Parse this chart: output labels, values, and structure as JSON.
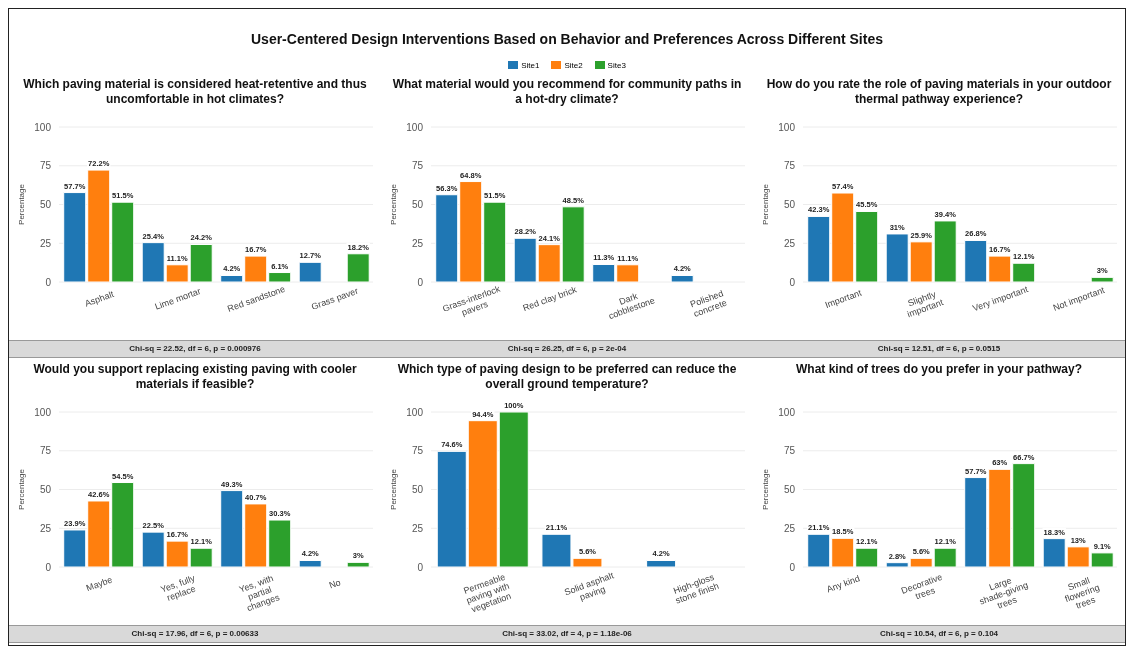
{
  "chart_data": [
    {
      "type": "other",
      "title": "User-Centered Design Interventions Based on Behavior and Preferences Across Different Sites"
    },
    {
      "type": "bar",
      "title": "Which paving material is considered heat-retentive and thus uncomfortable in hot climates?",
      "ylabel": "Percentage",
      "categories": [
        "Asphalt",
        "Lime mortar",
        "Red sandstone",
        "Grass paver"
      ],
      "ylim": [
        0,
        100
      ],
      "yticks": [
        0,
        25,
        50,
        75,
        100
      ],
      "grid": "y",
      "legend": "top",
      "series": [
        {
          "name": "Site1",
          "color": "#1f77b4",
          "values": [
            57.7,
            25.4,
            4.2,
            12.7
          ],
          "value_labels": [
            "57.7%",
            "25.4%",
            "4.2%",
            "12.7%"
          ]
        },
        {
          "name": "Site2",
          "color": "#ff7f0e",
          "values": [
            72.2,
            11.1,
            16.7,
            null
          ],
          "value_labels": [
            "72.2%",
            "11.1%",
            "16.7%",
            null
          ]
        },
        {
          "name": "Site3",
          "color": "#2ca02c",
          "values": [
            51.5,
            24.2,
            6.1,
            18.2
          ],
          "value_labels": [
            "51.5%",
            "24.2%",
            "6.1%",
            "18.2%"
          ]
        }
      ],
      "annotations": [
        "Chi-sq = 22.52, df = 6, p = 0.000976"
      ]
    },
    {
      "type": "bar",
      "title": "What material would you recommend for community paths in a hot-dry climate?",
      "ylabel": "Percentage",
      "categories": [
        "Grass-interlock pavers",
        "Red clay brick",
        "Dark cobblestone",
        "Polished concrete"
      ],
      "ylim": [
        0,
        100
      ],
      "yticks": [
        0,
        25,
        50,
        75,
        100
      ],
      "grid": "y",
      "series": [
        {
          "color": "#1f77b4",
          "values": [
            56.3,
            28.2,
            11.3,
            4.2
          ],
          "value_labels": [
            "56.3%",
            "28.2%",
            "11.3%",
            "4.2%"
          ]
        },
        {
          "color": "#ff7f0e",
          "values": [
            64.8,
            24.1,
            11.1,
            null
          ],
          "value_labels": [
            "64.8%",
            "24.1%",
            "11.1%",
            null
          ]
        },
        {
          "color": "#2ca02c",
          "values": [
            51.5,
            48.5,
            null,
            null
          ],
          "value_labels": [
            "51.5%",
            "48.5%",
            null,
            null
          ]
        }
      ],
      "annotations": [
        "Chi-sq = 26.25, df = 6, p = 2e-04"
      ]
    },
    {
      "type": "bar",
      "title": "How do you rate the role of paving materials in your outdoor thermal pathway experience?",
      "ylabel": "Percentage",
      "categories": [
        "Important",
        "Slightly important",
        "Very important",
        "Not important"
      ],
      "ylim": [
        0,
        100
      ],
      "yticks": [
        0,
        25,
        50,
        75,
        100
      ],
      "grid": "y",
      "series": [
        {
          "color": "#1f77b4",
          "values": [
            42.3,
            31,
            26.8,
            null
          ],
          "value_labels": [
            "42.3%",
            "31%",
            "26.8%",
            null
          ]
        },
        {
          "color": "#ff7f0e",
          "values": [
            57.4,
            25.9,
            16.7,
            null
          ],
          "value_labels": [
            "57.4%",
            "25.9%",
            "16.7%",
            null
          ]
        },
        {
          "color": "#2ca02c",
          "values": [
            45.5,
            39.4,
            12.1,
            3
          ],
          "value_labels": [
            "45.5%",
            "39.4%",
            "12.1%",
            "3%"
          ]
        }
      ],
      "annotations": [
        "Chi-sq = 12.51, df = 6, p = 0.0515"
      ]
    },
    {
      "type": "bar",
      "title": "Would you support replacing existing paving with cooler materials if feasible?",
      "ylabel": "Percentage",
      "categories": [
        "Maybe",
        "Yes, fully replace",
        "Yes, with partial changes",
        "No"
      ],
      "ylim": [
        0,
        100
      ],
      "yticks": [
        0,
        25,
        50,
        75,
        100
      ],
      "grid": "y",
      "series": [
        {
          "color": "#1f77b4",
          "values": [
            23.9,
            22.5,
            49.3,
            4.2
          ],
          "value_labels": [
            "23.9%",
            "22.5%",
            "49.3%",
            "4.2%"
          ]
        },
        {
          "color": "#ff7f0e",
          "values": [
            42.6,
            16.7,
            40.7,
            null
          ],
          "value_labels": [
            "42.6%",
            "16.7%",
            "40.7%",
            null
          ]
        },
        {
          "color": "#2ca02c",
          "values": [
            54.5,
            12.1,
            30.3,
            3
          ],
          "value_labels": [
            "54.5%",
            "12.1%",
            "30.3%",
            "3%"
          ]
        }
      ],
      "annotations": [
        "Chi-sq = 17.96, df = 6, p = 0.00633"
      ]
    },
    {
      "type": "bar",
      "title": "Which type of paving design to be preferred can reduce the overall ground temperature?",
      "ylabel": "Percentage",
      "categories": [
        "Permeable paving with vegetation",
        "Solid asphalt paving",
        "High-gloss stone finish"
      ],
      "ylim": [
        0,
        100
      ],
      "yticks": [
        0,
        25,
        50,
        75,
        100
      ],
      "grid": "y",
      "series": [
        {
          "color": "#1f77b4",
          "values": [
            74.6,
            21.1,
            4.2
          ],
          "value_labels": [
            "74.6%",
            "21.1%",
            "4.2%"
          ]
        },
        {
          "color": "#ff7f0e",
          "values": [
            94.4,
            5.6,
            null
          ],
          "value_labels": [
            "94.4%",
            "5.6%",
            null
          ]
        },
        {
          "color": "#2ca02c",
          "values": [
            100,
            null,
            null
          ],
          "value_labels": [
            "100%",
            null,
            null
          ]
        }
      ],
      "annotations": [
        "Chi-sq = 33.02, df = 4, p = 1.18e-06"
      ]
    },
    {
      "type": "bar",
      "title": "What kind of trees do you prefer in your pathway?",
      "ylabel": "Percentage",
      "categories": [
        "Any kind",
        "Decorative trees",
        "Large shade-giving trees",
        "Small flowering trees"
      ],
      "ylim": [
        0,
        100
      ],
      "yticks": [
        0,
        25,
        50,
        75,
        100
      ],
      "grid": "y",
      "series": [
        {
          "color": "#1f77b4",
          "values": [
            21.1,
            2.8,
            57.7,
            18.3
          ],
          "value_labels": [
            "21.1%",
            "2.8%",
            "57.7%",
            "18.3%"
          ]
        },
        {
          "color": "#ff7f0e",
          "values": [
            18.5,
            5.6,
            63,
            13
          ],
          "value_labels": [
            "18.5%",
            "5.6%",
            "63%",
            "13%"
          ]
        },
        {
          "color": "#2ca02c",
          "values": [
            12.1,
            12.1,
            66.7,
            9.1
          ],
          "value_labels": [
            "12.1%",
            "12.1%",
            "66.7%",
            "9.1%"
          ]
        }
      ],
      "annotations": [
        "Chi-sq = 10.54, df = 6, p = 0.104"
      ]
    }
  ]
}
